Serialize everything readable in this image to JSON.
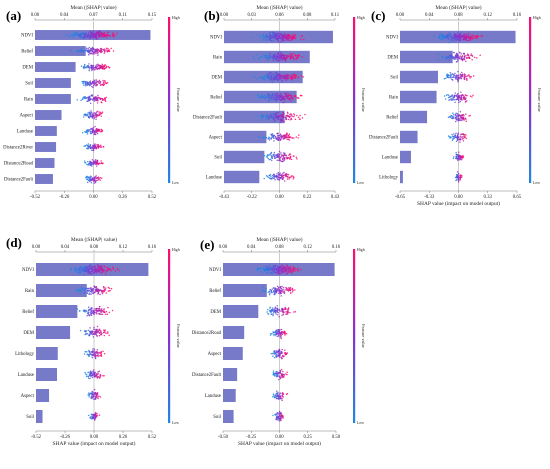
{
  "chart_data": [
    {
      "panel": "(a)",
      "type": "bar",
      "top_axis_title": "Mean (|SHAP| value)",
      "top_ticks": [
        "0.00",
        "0.04",
        "0.07",
        "0.11",
        "0.15"
      ],
      "top_range": [
        0,
        0.15
      ],
      "bottom_ticks": [
        "-0.52",
        "-0.26",
        "0.00",
        "0.26",
        "0.52"
      ],
      "bottom_range": [
        -0.52,
        0.52
      ],
      "bottom_axis_title": "",
      "features": [
        "NDVI",
        "Relief",
        "DEM",
        "Soil",
        "Rain",
        "Aspect",
        "Landuse",
        "Distance2River",
        "Distance2Road",
        "Distance2Fault"
      ],
      "values": [
        0.148,
        0.065,
        0.052,
        0.046,
        0.046,
        0.034,
        0.028,
        0.027,
        0.025,
        0.023
      ],
      "colorbar_high": "High",
      "colorbar_low": "Low",
      "colorbar_label": "Feature value"
    },
    {
      "panel": "(b)",
      "type": "bar",
      "top_axis_title": "Mean (|SHAP| value)",
      "top_ticks": [
        "0.00",
        "0.03",
        "0.06",
        "0.08",
        "0.11"
      ],
      "top_range": [
        0,
        0.11
      ],
      "bottom_ticks": [
        "-0.43",
        "-0.22",
        "0.00",
        "0.22",
        "0.43"
      ],
      "bottom_range": [
        -0.43,
        0.43
      ],
      "bottom_axis_title": "",
      "features": [
        "NDVI",
        "Rain",
        "DEM",
        "Relief",
        "Distance2Fault",
        "Aspect",
        "Soil",
        "Landuse"
      ],
      "values": [
        0.108,
        0.085,
        0.078,
        0.072,
        0.06,
        0.042,
        0.04,
        0.035
      ],
      "colorbar_high": "High",
      "colorbar_low": "Low",
      "colorbar_label": "Feature value"
    },
    {
      "panel": "(c)",
      "type": "bar",
      "top_axis_title": "Mean (|SHAP| value)",
      "top_ticks": [
        "0.00",
        "0.04",
        "0.08",
        "0.12",
        "0.16"
      ],
      "top_range": [
        0,
        0.16
      ],
      "bottom_ticks": [
        "-0.65",
        "-0.33",
        "0.00",
        "0.33",
        "0.65"
      ],
      "bottom_range": [
        -0.65,
        0.65
      ],
      "bottom_axis_title": "SHAP value (impact on model output)",
      "features": [
        "NDVI",
        "DEM",
        "Soil",
        "Rain",
        "Relief",
        "Distance2Fault",
        "Landuse",
        "Lithology"
      ],
      "values": [
        0.158,
        0.072,
        0.052,
        0.05,
        0.037,
        0.024,
        0.015,
        0.004
      ],
      "colorbar_high": "High",
      "colorbar_low": "Low",
      "colorbar_label": "Feature value"
    },
    {
      "panel": "(d)",
      "type": "bar",
      "top_axis_title": "Mean (|SHAP| value)",
      "top_ticks": [
        "0.00",
        "0.04",
        "0.08",
        "0.12",
        "0.16"
      ],
      "top_range": [
        0,
        0.16
      ],
      "bottom_ticks": [
        "-0.52",
        "-0.26",
        "0.00",
        "0.26",
        "0.52"
      ],
      "bottom_range": [
        -0.52,
        0.52
      ],
      "bottom_axis_title": "SHAP value (impact on model output)",
      "features": [
        "NDVI",
        "Rain",
        "Relief",
        "DEM",
        "Lithology",
        "Landuse",
        "Aspect",
        "Soil"
      ],
      "values": [
        0.155,
        0.07,
        0.057,
        0.047,
        0.03,
        0.029,
        0.018,
        0.009
      ],
      "colorbar_high": "High",
      "colorbar_low": "Low",
      "colorbar_label": "Feature value"
    },
    {
      "panel": "(e)",
      "type": "bar",
      "top_axis_title": "Mean (|SHAP| value)",
      "top_ticks": [
        "0.00",
        "0.04",
        "0.08",
        "0.12",
        "0.16"
      ],
      "top_range": [
        0,
        0.16
      ],
      "bottom_ticks": [
        "-0.50",
        "-0.25",
        "0.00",
        "0.25",
        "0.50"
      ],
      "bottom_range": [
        -0.5,
        0.5
      ],
      "bottom_axis_title": "SHAP value (impact on model output)",
      "features": [
        "NDVI",
        "Relief",
        "DEM",
        "Distance2Road",
        "Aspect",
        "Distance2Fault",
        "Landuse",
        "Soil"
      ],
      "values": [
        0.158,
        0.062,
        0.05,
        0.03,
        0.028,
        0.02,
        0.018,
        0.015
      ],
      "colorbar_high": "High",
      "colorbar_low": "Low",
      "colorbar_label": "Feature value"
    }
  ],
  "colors": {
    "bar": "#6a6fc4",
    "high": "#e8197d",
    "mid": "#8a2fb0",
    "low": "#2f7fe0",
    "zero_line": "#9a9a9a"
  }
}
